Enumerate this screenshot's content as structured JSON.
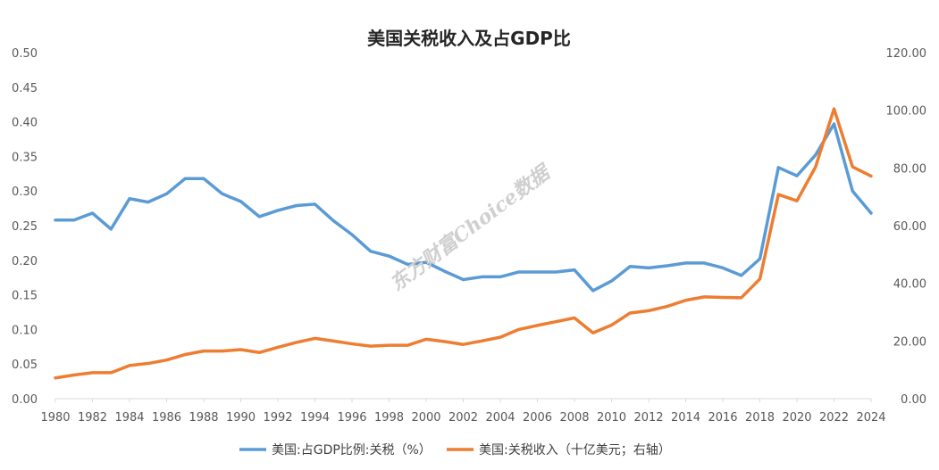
{
  "chart_data": {
    "type": "line",
    "title": "美国关税收入及占GDP比",
    "x": [
      1980,
      1981,
      1982,
      1983,
      1984,
      1985,
      1986,
      1987,
      1988,
      1989,
      1990,
      1991,
      1992,
      1993,
      1994,
      1995,
      1996,
      1997,
      1998,
      1999,
      2000,
      2001,
      2002,
      2003,
      2004,
      2005,
      2006,
      2007,
      2008,
      2009,
      2010,
      2011,
      2012,
      2013,
      2014,
      2015,
      2016,
      2017,
      2018,
      2019,
      2020,
      2021,
      2022,
      2023,
      2024
    ],
    "x_tick_labels": [
      "1980",
      "1982",
      "1984",
      "1986",
      "1988",
      "1990",
      "1992",
      "1994",
      "1996",
      "1998",
      "2000",
      "2002",
      "2004",
      "2006",
      "2008",
      "2010",
      "2012",
      "2014",
      "2016",
      "2018",
      "2020",
      "2022",
      "2024"
    ],
    "y_left": {
      "min": 0,
      "max": 0.5,
      "ticks": [
        "0.00",
        "0.05",
        "0.10",
        "0.15",
        "0.20",
        "0.25",
        "0.30",
        "0.35",
        "0.40",
        "0.45",
        "0.50"
      ]
    },
    "y_right": {
      "min": 0,
      "max": 120,
      "ticks": [
        "0.00",
        "20.00",
        "40.00",
        "60.00",
        "80.00",
        "100.00",
        "120.00"
      ]
    },
    "series": [
      {
        "name": "美国:占GDP比例:关税（%）",
        "axis": "left",
        "color": "#5B9BD5",
        "values": [
          0.258,
          0.258,
          0.268,
          0.245,
          0.289,
          0.284,
          0.296,
          0.318,
          0.318,
          0.296,
          0.285,
          0.263,
          0.272,
          0.279,
          0.281,
          0.257,
          0.237,
          0.213,
          0.206,
          0.194,
          0.197,
          0.184,
          0.172,
          0.176,
          0.176,
          0.183,
          0.183,
          0.183,
          0.186,
          0.156,
          0.17,
          0.191,
          0.189,
          0.192,
          0.196,
          0.196,
          0.189,
          0.178,
          0.202,
          0.334,
          0.322,
          0.352,
          0.397,
          0.3,
          0.268
        ]
      },
      {
        "name": "美国:关税收入（十亿美元；右轴）",
        "axis": "right",
        "color": "#ED7D31",
        "values": [
          7.2,
          8.2,
          9.0,
          9.0,
          11.5,
          12.2,
          13.4,
          15.3,
          16.5,
          16.5,
          17.0,
          16.0,
          17.8,
          19.5,
          20.9,
          20.0,
          19.0,
          18.2,
          18.5,
          18.5,
          20.6,
          19.8,
          18.8,
          20.0,
          21.3,
          24.0,
          25.4,
          26.7,
          28.0,
          22.8,
          25.5,
          29.7,
          30.5,
          32.0,
          34.1,
          35.3,
          35.1,
          35.0,
          41.5,
          70.8,
          68.6,
          80.3,
          100.5,
          80.4,
          77.2
        ]
      }
    ],
    "legend_position": "bottom",
    "grid": false
  },
  "watermark": "东方财富Choice数据"
}
